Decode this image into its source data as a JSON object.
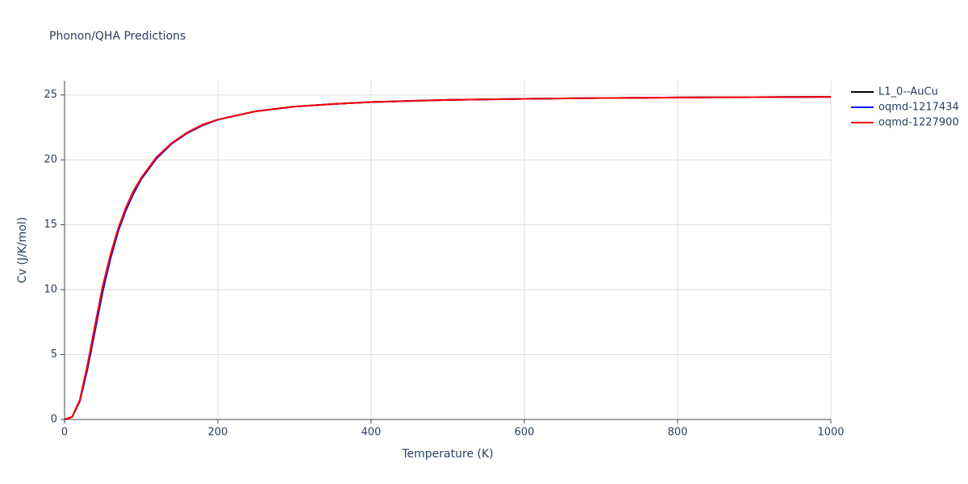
{
  "chart_data": {
    "type": "line",
    "title": "Phonon/QHA Predictions",
    "x_label": "Temperature (K)",
    "y_label": "Cv (J/K/mol)",
    "x": [
      0,
      10,
      20,
      30,
      40,
      50,
      60,
      70,
      80,
      90,
      100,
      120,
      140,
      160,
      180,
      200,
      250,
      300,
      350,
      400,
      500,
      600,
      700,
      800,
      900,
      1000
    ],
    "series": [
      {
        "name": "L1_0--AuCu",
        "color": "#000000",
        "values": [
          0,
          0.2,
          1.5,
          4.2,
          7.3,
          10.3,
          12.7,
          14.7,
          16.3,
          17.6,
          18.6,
          20.2,
          21.3,
          22.1,
          22.7,
          23.1,
          23.75,
          24.1,
          24.3,
          24.45,
          24.62,
          24.7,
          24.76,
          24.8,
          24.83,
          24.85
        ]
      },
      {
        "name": "oqmd-1217434",
        "color": "#0000ff",
        "values": [
          0,
          0.2,
          1.4,
          3.9,
          6.9,
          9.9,
          12.4,
          14.5,
          16.1,
          17.4,
          18.5,
          20.1,
          21.25,
          22.05,
          22.65,
          23.1,
          23.75,
          24.1,
          24.3,
          24.45,
          24.62,
          24.7,
          24.76,
          24.8,
          24.83,
          24.85
        ]
      },
      {
        "name": "oqmd-1227900",
        "color": "#ff0000",
        "values": [
          0,
          0.2,
          1.5,
          4.2,
          7.3,
          10.3,
          12.7,
          14.7,
          16.3,
          17.6,
          18.6,
          20.2,
          21.3,
          22.1,
          22.7,
          23.1,
          23.75,
          24.1,
          24.3,
          24.45,
          24.62,
          24.7,
          24.76,
          24.8,
          24.83,
          24.85
        ]
      }
    ],
    "xlim": [
      0,
      1000
    ],
    "xticks": [
      0,
      200,
      400,
      600,
      800,
      1000
    ],
    "ylim": [
      0,
      26.1
    ],
    "yticks": [
      0,
      5,
      10,
      15,
      20,
      25
    ],
    "grid": true
  }
}
